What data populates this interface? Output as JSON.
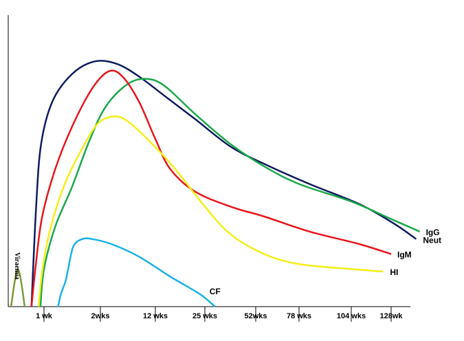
{
  "chart_data": {
    "type": "line",
    "title": "",
    "xlabel": "",
    "ylabel": "",
    "grid": false,
    "legend": "labels at line ends",
    "x_ticks": [
      "1 wk",
      "2wks",
      "12 wks",
      "25 wks",
      "52wks",
      "78 wks",
      "104 wks",
      "128wk"
    ],
    "x_tick_index": [
      1,
      2,
      3,
      4,
      5,
      6,
      7,
      8
    ],
    "xlim": [
      0,
      9.2
    ],
    "ylim": [
      0,
      100
    ],
    "series": [
      {
        "name": "Neut",
        "color": "#0d1b5e",
        "points": [
          [
            0.65,
            0
          ],
          [
            0.78,
            40
          ],
          [
            0.92,
            65
          ],
          [
            1.15,
            82
          ],
          [
            1.5,
            93
          ],
          [
            1.9,
            98
          ],
          [
            2.3,
            97
          ],
          [
            2.7,
            92
          ],
          [
            3.2,
            84
          ],
          [
            3.8,
            75
          ],
          [
            4.5,
            64
          ],
          [
            5.2,
            57
          ],
          [
            6.2,
            49
          ],
          [
            7.2,
            41
          ],
          [
            8.1,
            33
          ],
          [
            8.7,
            27
          ]
        ]
      },
      {
        "name": "IgG",
        "color": "#19a84a",
        "points": [
          [
            0.9,
            0
          ],
          [
            1.0,
            15
          ],
          [
            1.2,
            32
          ],
          [
            1.5,
            48
          ],
          [
            1.8,
            66
          ],
          [
            2.1,
            80
          ],
          [
            2.5,
            89
          ],
          [
            2.85,
            91
          ],
          [
            3.2,
            88
          ],
          [
            3.8,
            77
          ],
          [
            4.5,
            65
          ],
          [
            5.2,
            56
          ],
          [
            6.0,
            49
          ],
          [
            7.0,
            42
          ],
          [
            8.0,
            35
          ],
          [
            8.8,
            30
          ]
        ]
      },
      {
        "name": "IgM",
        "color": "#e8151b",
        "points": [
          [
            0.65,
            0
          ],
          [
            0.78,
            18
          ],
          [
            0.95,
            36
          ],
          [
            1.2,
            55
          ],
          [
            1.5,
            72
          ],
          [
            1.85,
            87
          ],
          [
            2.15,
            94
          ],
          [
            2.4,
            92
          ],
          [
            2.7,
            82
          ],
          [
            3.0,
            67
          ],
          [
            3.3,
            55
          ],
          [
            3.8,
            46
          ],
          [
            4.5,
            40
          ],
          [
            5.2,
            36
          ],
          [
            6.2,
            30
          ],
          [
            7.2,
            25
          ],
          [
            8.0,
            21
          ]
        ]
      },
      {
        "name": "HI",
        "color": "#f5ee16",
        "points": [
          [
            0.85,
            0
          ],
          [
            0.95,
            14
          ],
          [
            1.1,
            30
          ],
          [
            1.35,
            48
          ],
          [
            1.65,
            62
          ],
          [
            1.95,
            73
          ],
          [
            2.25,
            76
          ],
          [
            2.5,
            74
          ],
          [
            2.9,
            66
          ],
          [
            3.4,
            55
          ],
          [
            4.0,
            40
          ],
          [
            4.5,
            29
          ],
          [
            5.2,
            21
          ],
          [
            6.0,
            17
          ],
          [
            7.0,
            15
          ],
          [
            7.8,
            14
          ]
        ]
      },
      {
        "name": "CF",
        "color": "#1ab1e5",
        "points": [
          [
            1.25,
            0
          ],
          [
            1.3,
            5
          ],
          [
            1.38,
            10
          ],
          [
            1.42,
            14
          ],
          [
            1.52,
            24
          ],
          [
            1.68,
            27
          ],
          [
            1.85,
            27
          ],
          [
            2.2,
            25
          ],
          [
            2.7,
            20
          ],
          [
            3.3,
            12
          ],
          [
            3.9,
            5
          ],
          [
            4.2,
            0
          ]
        ]
      },
      {
        "name": "Viraemia",
        "color": "#7a9a3a",
        "points": [
          [
            0.08,
            0
          ],
          [
            0.18,
            10
          ],
          [
            0.27,
            15
          ],
          [
            0.36,
            10
          ],
          [
            0.46,
            0
          ]
        ]
      }
    ]
  }
}
